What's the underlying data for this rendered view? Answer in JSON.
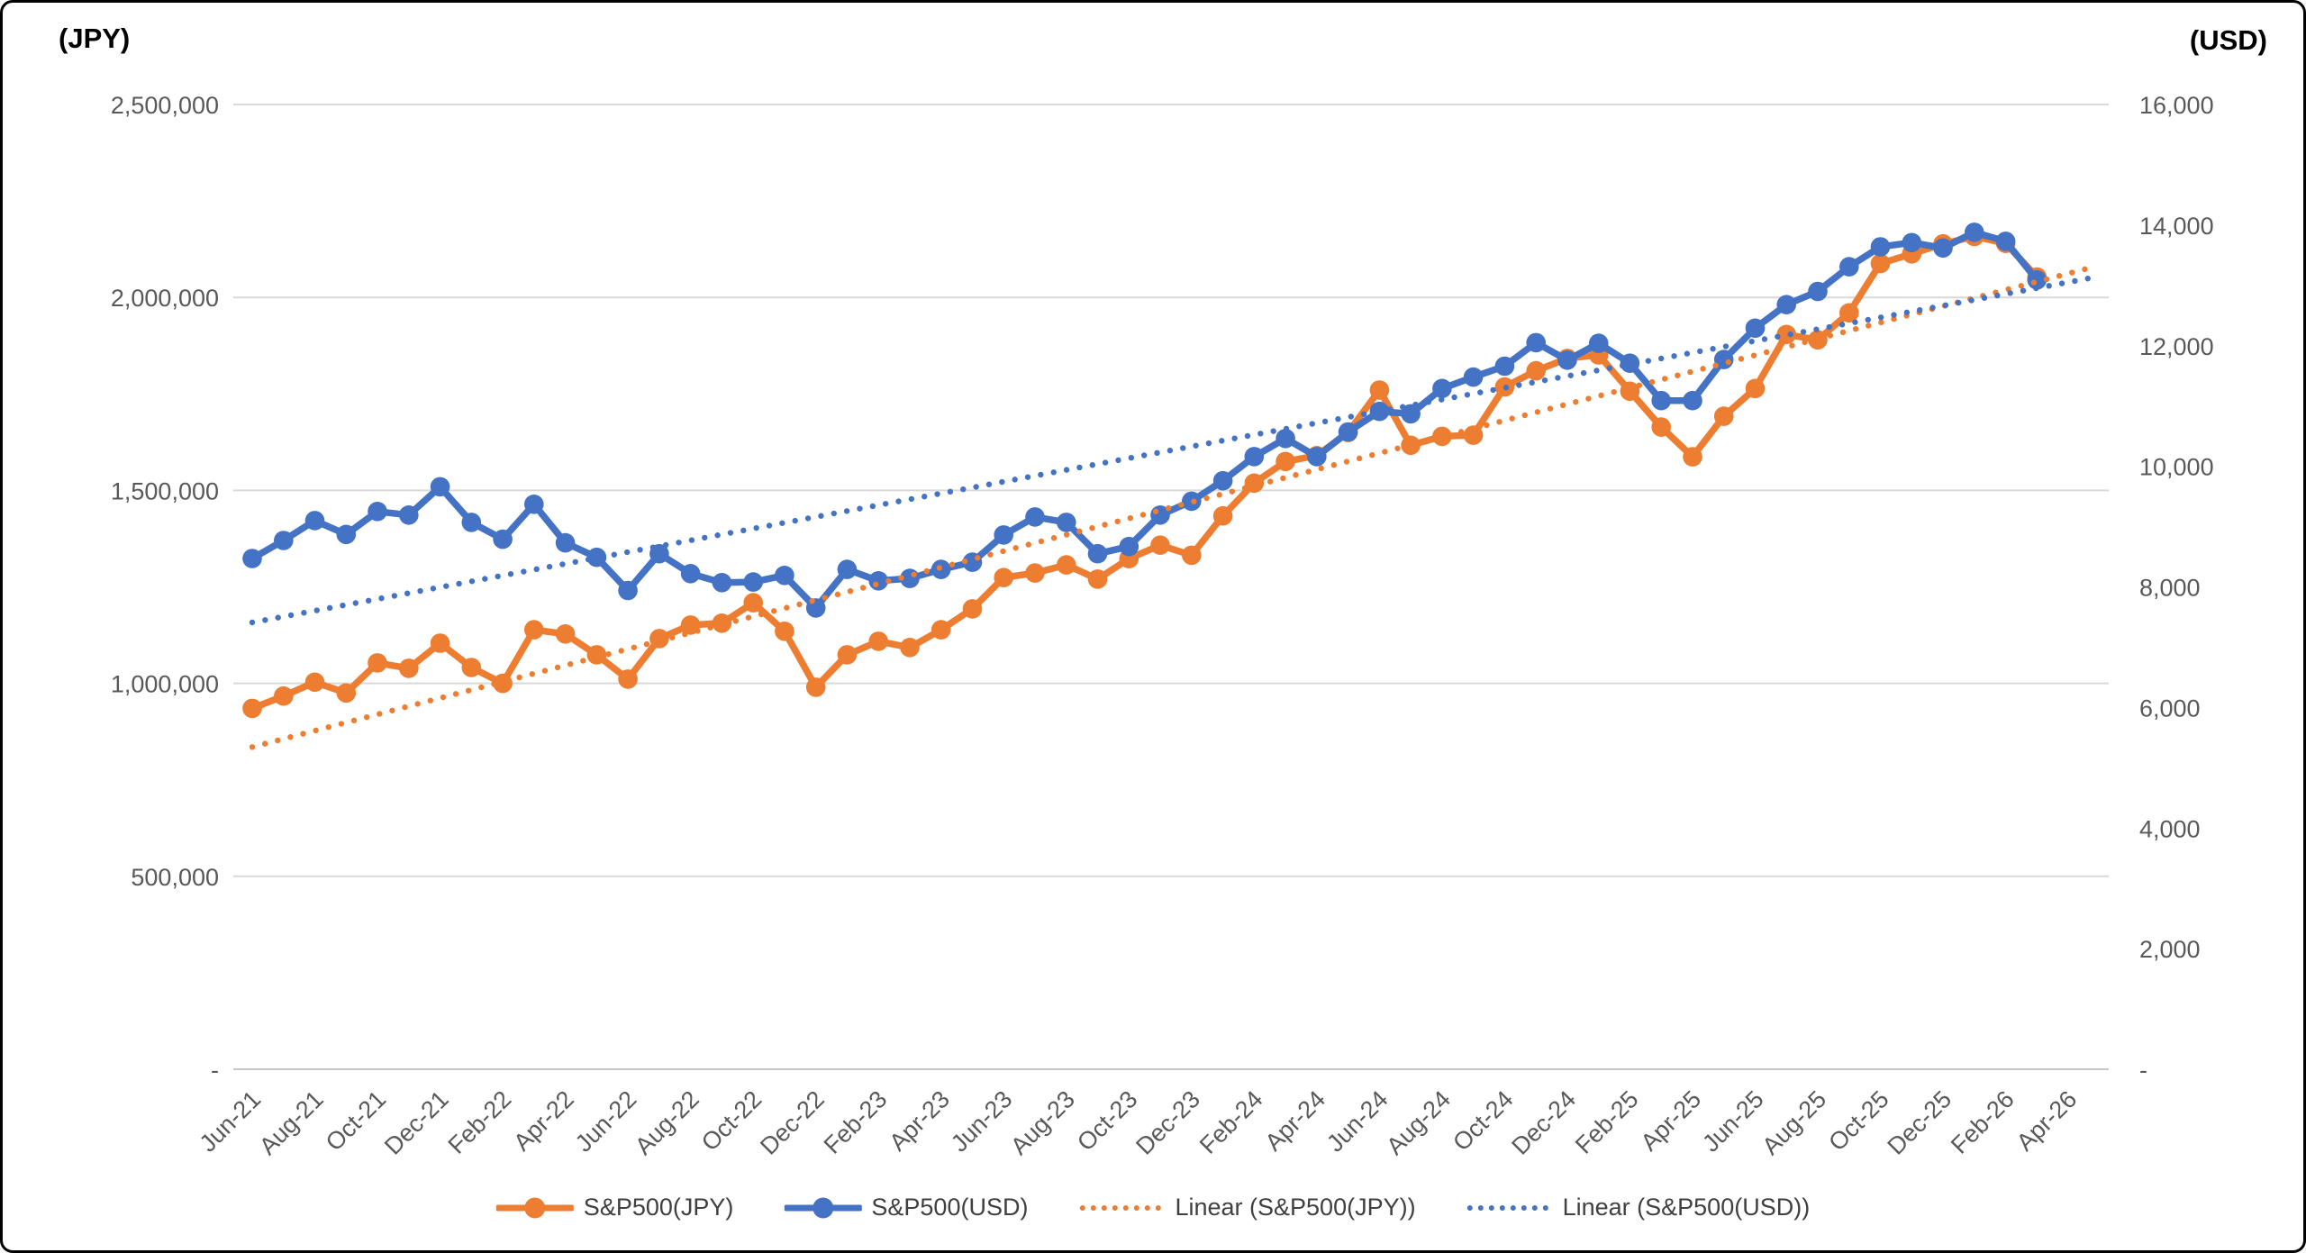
{
  "chart_data": {
    "type": "line",
    "title": "",
    "grid": true,
    "legend_position": "bottom",
    "colors": {
      "jpy": "#ED7D31",
      "usd": "#4472C4",
      "gridline": "#D9D9D9",
      "tick_text": "#595959",
      "legend_text": "#404040"
    },
    "left_axis": {
      "title": "(JPY)",
      "min": 0,
      "max": 2500000,
      "tick_labels": [
        "2,500,000",
        "2,000,000",
        "1,500,000",
        "1,000,000",
        "500,000",
        "-"
      ],
      "tick_values": [
        2500000,
        2000000,
        1500000,
        1000000,
        500000,
        0
      ]
    },
    "right_axis": {
      "title": "(USD)",
      "min": 0,
      "max": 16000,
      "tick_labels": [
        "16,000",
        "14,000",
        "12,000",
        "10,000",
        "8,000",
        "6,000",
        "4,000",
        "2,000",
        "-"
      ],
      "tick_values": [
        16000,
        14000,
        12000,
        10000,
        8000,
        6000,
        4000,
        2000,
        0
      ]
    },
    "x": [
      "Jun-21",
      "Jul-21",
      "Aug-21",
      "Sep-21",
      "Oct-21",
      "Nov-21",
      "Dec-21",
      "Jan-22",
      "Feb-22",
      "Mar-22",
      "Apr-22",
      "May-22",
      "Jun-22",
      "Jul-22",
      "Aug-22",
      "Sep-22",
      "Oct-22",
      "Nov-22",
      "Dec-22",
      "Jan-23",
      "Feb-23",
      "Mar-23",
      "Apr-23",
      "May-23",
      "Jun-23",
      "Jul-23",
      "Aug-23",
      "Sep-23",
      "Oct-23",
      "Nov-23",
      "Dec-23",
      "Jan-24",
      "Feb-24",
      "Mar-24",
      "Apr-24",
      "May-24",
      "Jun-24",
      "Jul-24",
      "Aug-24",
      "Sep-24",
      "Oct-24",
      "Nov-24",
      "Dec-24",
      "Jan-25",
      "Feb-25",
      "Mar-25",
      "Apr-25",
      "May-25",
      "Jun-25",
      "Jul-25",
      "Aug-25",
      "Sep-25",
      "Oct-25",
      "Nov-25",
      "Dec-25",
      "Jan-26",
      "Feb-26",
      "Mar-26"
    ],
    "x_tick_labels": [
      "Jun-21",
      "Aug-21",
      "Oct-21",
      "Dec-21",
      "Feb-22",
      "Apr-22",
      "Jun-22",
      "Aug-22",
      "Oct-22",
      "Dec-22",
      "Feb-23",
      "Apr-23",
      "Jun-23",
      "Aug-23",
      "Oct-23",
      "Dec-23",
      "Feb-24",
      "Apr-24",
      "Jun-24",
      "Aug-24",
      "Oct-24",
      "Dec-24",
      "Feb-25",
      "Apr-25",
      "Jun-25",
      "Aug-25",
      "Oct-25",
      "Dec-25",
      "Feb-26",
      "Apr-26"
    ],
    "series": [
      {
        "name": "S&P500(JPY)",
        "axis": "left",
        "style": "solid-markers",
        "color": "#ED7D31",
        "values": [
          935000,
          967000,
          1003000,
          975000,
          1053000,
          1039000,
          1104000,
          1041000,
          1000000,
          1139000,
          1128000,
          1074000,
          1011000,
          1116000,
          1151000,
          1156000,
          1209000,
          1135000,
          990000,
          1074000,
          1109000,
          1093000,
          1139000,
          1193000,
          1274000,
          1286000,
          1307000,
          1270000,
          1323000,
          1358000,
          1332000,
          1434000,
          1519000,
          1575000,
          1590000,
          1650000,
          1760000,
          1617000,
          1640000,
          1643000,
          1768000,
          1810000,
          1842000,
          1851000,
          1757000,
          1664000,
          1587000,
          1692000,
          1764000,
          1904000,
          1890000,
          1960000,
          2088000,
          2113000,
          2139000,
          2158000,
          2140000,
          2053000
        ]
      },
      {
        "name": "S&P500(USD)",
        "axis": "right",
        "style": "solid-markers",
        "color": "#4472C4",
        "values": [
          8470,
          8770,
          9100,
          8870,
          9250,
          9190,
          9660,
          9070,
          8790,
          9370,
          8730,
          8490,
          7940,
          8550,
          8220,
          8070,
          8080,
          8190,
          7650,
          8290,
          8100,
          8140,
          8290,
          8410,
          8860,
          9160,
          9070,
          8550,
          8670,
          9190,
          9420,
          9760,
          10160,
          10460,
          10160,
          10570,
          10910,
          10870,
          11290,
          11480,
          11660,
          12050,
          11760,
          12040,
          11710,
          11090,
          11090,
          11770,
          12290,
          12680,
          12900,
          13310,
          13640,
          13710,
          13620,
          13880,
          13730,
          13090
        ]
      },
      {
        "name": "Linear (S&P500(JPY))",
        "axis": "left",
        "style": "dotted-trend",
        "color": "#ED7D31",
        "trend": {
          "start_value": 835000,
          "end_value": 2079000
        }
      },
      {
        "name": "Linear (S&P500(USD))",
        "axis": "right",
        "style": "dotted-trend",
        "color": "#4472C4",
        "trend": {
          "start_value": 7410,
          "end_value": 13130
        }
      }
    ]
  }
}
